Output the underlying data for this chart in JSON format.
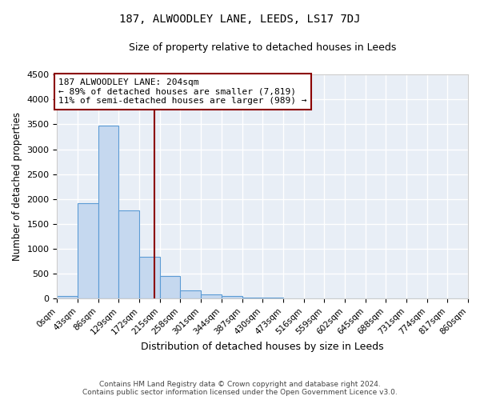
{
  "title": "187, ALWOODLEY LANE, LEEDS, LS17 7DJ",
  "subtitle": "Size of property relative to detached houses in Leeds",
  "xlabel": "Distribution of detached houses by size in Leeds",
  "ylabel": "Number of detached properties",
  "footer_line1": "Contains HM Land Registry data © Crown copyright and database right 2024.",
  "footer_line2": "Contains public sector information licensed under the Open Government Licence v3.0.",
  "annotation_line1": "187 ALWOODLEY LANE: 204sqm",
  "annotation_line2": "← 89% of detached houses are smaller (7,819)",
  "annotation_line3": "11% of semi-detached houses are larger (989) →",
  "property_size": 204,
  "bin_edges": [
    0,
    43,
    86,
    129,
    172,
    215,
    258,
    301,
    344,
    387,
    430,
    473,
    516,
    559,
    602,
    645,
    688,
    731,
    774,
    817,
    860
  ],
  "bar_heights": [
    50,
    1920,
    3480,
    1770,
    850,
    450,
    165,
    95,
    55,
    30,
    20,
    10,
    5,
    3,
    2,
    1,
    1,
    1,
    0,
    0
  ],
  "bar_color": "#c5d8ef",
  "bar_edge_color": "#5b9bd5",
  "vline_color": "#8b0000",
  "annotation_box_color": "#8b0000",
  "background_color": "#e8eef6",
  "grid_color": "#ffffff",
  "ylim": [
    0,
    4500
  ],
  "yticks": [
    0,
    500,
    1000,
    1500,
    2000,
    2500,
    3000,
    3500,
    4000,
    4500
  ]
}
